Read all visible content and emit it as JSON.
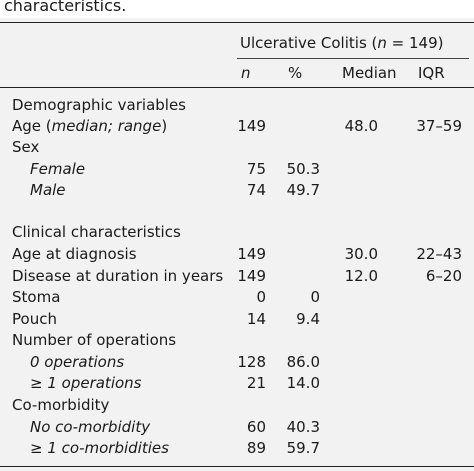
{
  "caption": "characteristics.",
  "group_header": {
    "prefix": "Ulcerative Colitis (",
    "n_symbol": "n",
    "suffix": " = 149)"
  },
  "columns": {
    "n": "n",
    "pct": "%",
    "median": "Median",
    "iqr": "IQR"
  },
  "sections": {
    "demographic": "Demographic variables",
    "clinical": "Clinical characteristics"
  },
  "age_label": {
    "prefix": "Age (",
    "italic": "median; range",
    "suffix": ")"
  },
  "rows": [
    {
      "id": "age",
      "label": "",
      "italic": false,
      "n": "149",
      "pct": "",
      "median": "48.0",
      "iqr": "37–59"
    },
    {
      "id": "sex",
      "label": "Sex",
      "italic": false,
      "n": "",
      "pct": "",
      "median": "",
      "iqr": ""
    },
    {
      "id": "female",
      "label": "Female",
      "italic": true,
      "n": "75",
      "pct": "50.3",
      "median": "",
      "iqr": ""
    },
    {
      "id": "male",
      "label": "Male",
      "italic": true,
      "n": "74",
      "pct": "49.7",
      "median": "",
      "iqr": ""
    },
    {
      "id": "age-diag",
      "label": "Age at diagnosis",
      "italic": false,
      "n": "149",
      "pct": "",
      "median": "30.0",
      "iqr": "22–43"
    },
    {
      "id": "duration",
      "label": "Disease at duration in years",
      "italic": false,
      "n": "149",
      "pct": "",
      "median": "12.0",
      "iqr": "6–20"
    },
    {
      "id": "stoma",
      "label": "Stoma",
      "italic": false,
      "n": "0",
      "pct": "0",
      "median": "",
      "iqr": ""
    },
    {
      "id": "pouch",
      "label": "Pouch",
      "italic": false,
      "n": "14",
      "pct": "9.4",
      "median": "",
      "iqr": ""
    },
    {
      "id": "num-ops",
      "label": "Number of operations",
      "italic": false,
      "n": "",
      "pct": "",
      "median": "",
      "iqr": ""
    },
    {
      "id": "zero-ops",
      "label": "0 operations",
      "italic": true,
      "n": "128",
      "pct": "86.0",
      "median": "",
      "iqr": ""
    },
    {
      "id": "ge1-ops",
      "label": "≥ 1 operations",
      "italic": true,
      "n": "21",
      "pct": "14.0",
      "median": "",
      "iqr": ""
    },
    {
      "id": "comorb",
      "label": "Co-morbidity",
      "italic": false,
      "n": "",
      "pct": "",
      "median": "",
      "iqr": ""
    },
    {
      "id": "no-comorb",
      "label": "No co-morbidity",
      "italic": true,
      "n": "60",
      "pct": "40.3",
      "median": "",
      "iqr": ""
    },
    {
      "id": "ge1-comorb",
      "label": "≥ 1 co-morbidities",
      "italic": true,
      "n": "89",
      "pct": "59.7",
      "median": "",
      "iqr": ""
    }
  ]
}
